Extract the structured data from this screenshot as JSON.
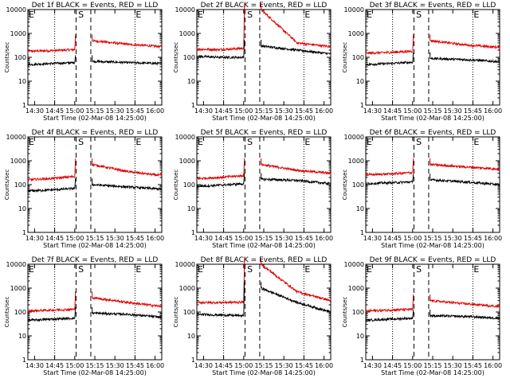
{
  "chart_data": {
    "type": "line",
    "grid_layout": "3x3",
    "y_scale": "log",
    "ylim": [
      1,
      10000
    ],
    "y_ticks": [
      "1",
      "10",
      "100",
      "1000",
      "10000"
    ],
    "x_tick_labels": [
      "14:30",
      "14:45",
      "15:00",
      "15:15",
      "15:30",
      "15:45",
      "16:00"
    ],
    "xlabel": "Start Time (02-Mar-08 14:25:00)",
    "ylabel": "Counts/sec",
    "markers": {
      "dotted": [
        "14:45",
        "15:45"
      ],
      "dashed": [
        "15:01",
        "15:12"
      ]
    },
    "marker_labels": [
      {
        "text": "E",
        "at": "14:25"
      },
      {
        "text": "S",
        "at": "15:02"
      },
      {
        "text": "E",
        "at": "15:45"
      }
    ],
    "series_colors": {
      "events": "#000000",
      "lld": "#e00000"
    },
    "panels": [
      {
        "title": "Det 1f BLACK = Events, RED = LLD",
        "events": [
          50,
          55,
          60,
          68,
          60,
          55
        ],
        "lld": [
          180,
          190,
          210,
          500,
          350,
          280
        ]
      },
      {
        "title": "Det 2f BLACK = Events, RED = LLD",
        "events": [
          110,
          100,
          100,
          300,
          200,
          140
        ],
        "lld": [
          220,
          210,
          240,
          10000,
          400,
          280
        ]
      },
      {
        "title": "Det 3f BLACK = Events, RED = LLD",
        "events": [
          50,
          55,
          62,
          90,
          80,
          65
        ],
        "lld": [
          150,
          160,
          180,
          500,
          330,
          260
        ]
      },
      {
        "title": "Det 4f BLACK = Events, RED = LLD",
        "events": [
          55,
          60,
          70,
          100,
          80,
          65
        ],
        "lld": [
          160,
          180,
          220,
          700,
          350,
          240
        ]
      },
      {
        "title": "Det 5f BLACK = Events, RED = LLD",
        "events": [
          85,
          95,
          110,
          170,
          150,
          110
        ],
        "lld": [
          180,
          200,
          240,
          700,
          400,
          300
        ]
      },
      {
        "title": "Det 6f BLACK = Events, RED = LLD",
        "events": [
          110,
          120,
          130,
          160,
          130,
          100
        ],
        "lld": [
          260,
          280,
          320,
          700,
          550,
          450
        ]
      },
      {
        "title": "Det 7f BLACK = Events, RED = LLD",
        "events": [
          45,
          50,
          55,
          90,
          80,
          60
        ],
        "lld": [
          110,
          120,
          130,
          400,
          250,
          170
        ]
      },
      {
        "title": "Det 8f BLACK = Events, RED = LLD",
        "events": [
          80,
          75,
          70,
          1000,
          250,
          100
        ],
        "lld": [
          250,
          250,
          260,
          10000,
          700,
          300
        ]
      },
      {
        "title": "Det 9f BLACK = Events, RED = LLD",
        "events": [
          45,
          50,
          55,
          70,
          65,
          55
        ],
        "lld": [
          110,
          120,
          130,
          300,
          220,
          170
        ]
      }
    ]
  }
}
